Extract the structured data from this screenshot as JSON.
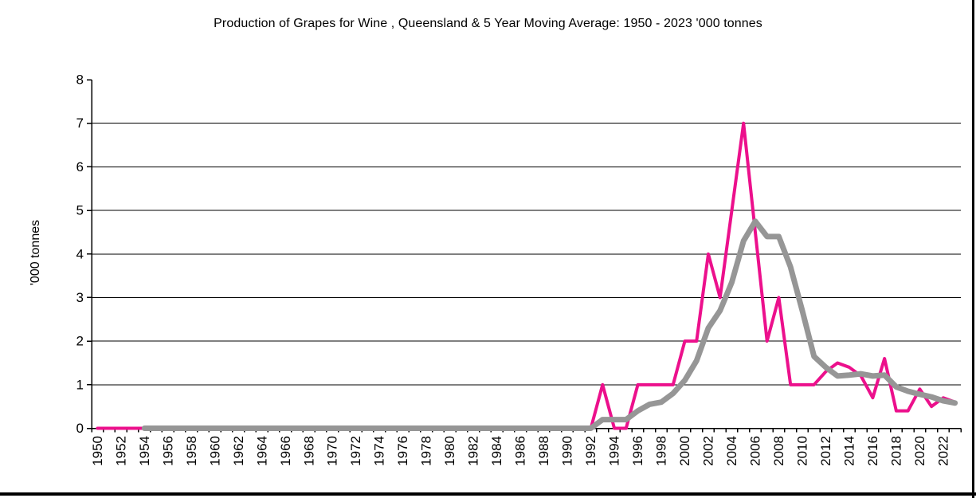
{
  "title": "Production of Grapes for Wine , Queensland & 5 Year Moving Average: 1950 - 2023 '000 tonnes",
  "y_axis_title": "'000 tonnes",
  "colors": {
    "production_line": "#EC108C",
    "moving_average_line": "#969696",
    "grid": "#000000",
    "axis": "#000000",
    "background": "#FFFFFF",
    "frame_border": "#000000"
  },
  "chart_data": {
    "type": "line",
    "title": "Production of Grapes for Wine , Queensland & 5 Year Moving Average: 1950 - 2023 '000 tonnes",
    "xlabel": "",
    "ylabel": "'000 tonnes",
    "ylim": [
      0,
      8
    ],
    "y_ticks": [
      0,
      1,
      2,
      3,
      4,
      5,
      6,
      7,
      8
    ],
    "x_label_interval": 2,
    "grid": true,
    "legend": "none",
    "x": [
      1950,
      1951,
      1952,
      1953,
      1954,
      1955,
      1956,
      1957,
      1958,
      1959,
      1960,
      1961,
      1962,
      1963,
      1964,
      1965,
      1966,
      1967,
      1968,
      1969,
      1970,
      1971,
      1972,
      1973,
      1974,
      1975,
      1976,
      1977,
      1978,
      1979,
      1980,
      1981,
      1982,
      1983,
      1984,
      1985,
      1986,
      1987,
      1988,
      1989,
      1990,
      1991,
      1992,
      1993,
      1994,
      1995,
      1996,
      1997,
      1998,
      1999,
      2000,
      2001,
      2002,
      2003,
      2004,
      2005,
      2006,
      2007,
      2008,
      2009,
      2010,
      2011,
      2012,
      2013,
      2014,
      2015,
      2016,
      2017,
      2018,
      2019,
      2020,
      2021,
      2022,
      2023
    ],
    "series": [
      {
        "name": "Production of Grapes for Wine, Queensland",
        "color_key": "production_line",
        "stroke_width": 4,
        "values": [
          0,
          0,
          0,
          0,
          0,
          0,
          0,
          0,
          0,
          0,
          0,
          0,
          0,
          0,
          0,
          0,
          0,
          0,
          0,
          0,
          0,
          0,
          0,
          0,
          0,
          0,
          0,
          0,
          0,
          0,
          0,
          0,
          0,
          0,
          0,
          0,
          0,
          0,
          0,
          0,
          0,
          0,
          0,
          1,
          0,
          0,
          1,
          1,
          1,
          1,
          2,
          2,
          4,
          3,
          5,
          7,
          4.5,
          2,
          3,
          1,
          1,
          1,
          1.3,
          1.5,
          1.4,
          1.2,
          0.7,
          1.6,
          0.4,
          0.4,
          0.9,
          0.5,
          0.7,
          0.6
        ]
      },
      {
        "name": "5 Year Moving Average",
        "color_key": "moving_average_line",
        "stroke_width": 7,
        "values": [
          null,
          null,
          null,
          null,
          0,
          0,
          0,
          0,
          0,
          0,
          0,
          0,
          0,
          0,
          0,
          0,
          0,
          0,
          0,
          0,
          0,
          0,
          0,
          0,
          0,
          0,
          0,
          0,
          0,
          0,
          0,
          0,
          0,
          0,
          0,
          0,
          0,
          0,
          0,
          0,
          0,
          0,
          0,
          0.2,
          0.2,
          0.2,
          0.4,
          0.55,
          0.6,
          0.8,
          1.1,
          1.55,
          2.3,
          2.7,
          3.35,
          4.3,
          4.75,
          4.4,
          4.4,
          3.7,
          2.7,
          1.65,
          1.4,
          1.2,
          1.22,
          1.25,
          1.2,
          1.22,
          0.95,
          0.85,
          0.78,
          0.72,
          0.63,
          0.58
        ]
      }
    ]
  }
}
